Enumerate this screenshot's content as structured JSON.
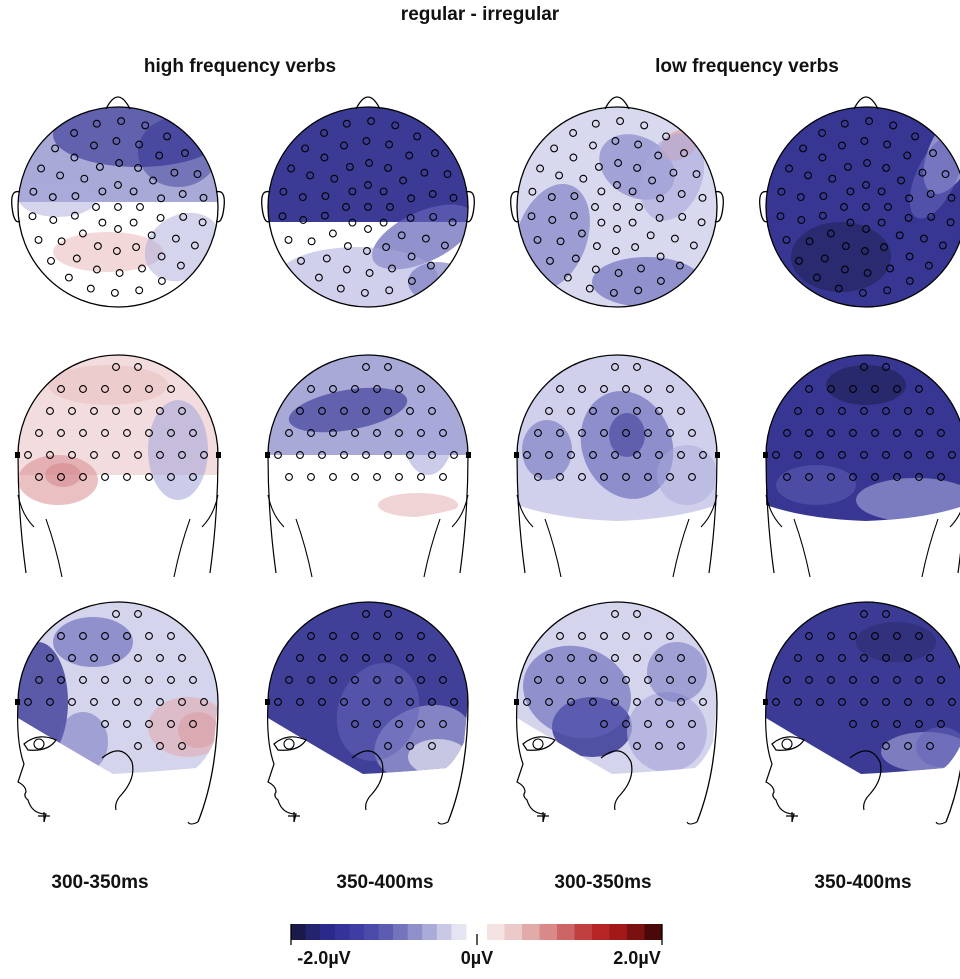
{
  "title": "regular - irregular",
  "groups": [
    {
      "label": "high frequency verbs"
    },
    {
      "label": "low frequency verbs"
    }
  ],
  "time_windows": [
    "300-350ms",
    "350-400ms",
    "300-350ms",
    "350-400ms"
  ],
  "views": [
    "top",
    "back",
    "left-side"
  ],
  "colorbar": {
    "min_label": "-2.0µV",
    "mid_label": "0µV",
    "max_label": "2.0µV",
    "min_value": -2.0,
    "max_value": 2.0,
    "neg_colors": [
      "#1a1a4a",
      "#23236e",
      "#2a2a8a",
      "#333399",
      "#3d3da3",
      "#4a4aa8",
      "#5c5cb0",
      "#7474bd",
      "#8f8fcb",
      "#ababd9",
      "#c9c9e6",
      "#e4e4f2"
    ],
    "pos_colors": [
      "#f5e3e3",
      "#edcaca",
      "#e3aaaa",
      "#d88a8a",
      "#cc6666",
      "#c04040",
      "#b52525",
      "#a01818",
      "#7a1010",
      "#4a0808"
    ]
  },
  "maps": [
    {
      "view": "top",
      "group": 0,
      "window": 0
    },
    {
      "view": "top",
      "group": 0,
      "window": 1
    },
    {
      "view": "top",
      "group": 1,
      "window": 2
    },
    {
      "view": "top",
      "group": 1,
      "window": 3
    },
    {
      "view": "back",
      "group": 0,
      "window": 0
    },
    {
      "view": "back",
      "group": 0,
      "window": 1
    },
    {
      "view": "back",
      "group": 1,
      "window": 2
    },
    {
      "view": "back",
      "group": 1,
      "window": 3
    },
    {
      "view": "left-side",
      "group": 0,
      "window": 0
    },
    {
      "view": "left-side",
      "group": 0,
      "window": 1
    },
    {
      "view": "left-side",
      "group": 1,
      "window": 2
    },
    {
      "view": "left-side",
      "group": 1,
      "window": 3
    }
  ]
}
